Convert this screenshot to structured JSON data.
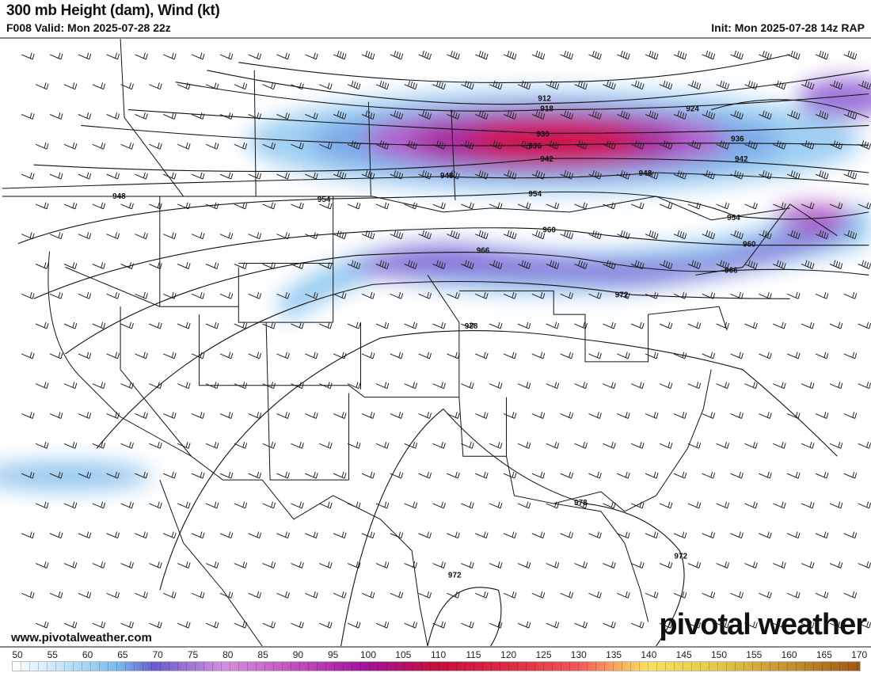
{
  "header": {
    "title": "300 mb Height (dam), Wind (kt)",
    "valid": "F008 Valid: Mon 2025-07-28 22z",
    "init": "Init: Mon 2025-07-28 14z RAP"
  },
  "map": {
    "contour_labels": [
      "912",
      "918",
      "924",
      "930",
      "936",
      "942",
      "948",
      "954",
      "960",
      "966",
      "972",
      "978"
    ],
    "fill_variable": "wind speed (kt)",
    "overlay": "wind barbs"
  },
  "footer": {
    "website": "www.pivotalweather.com",
    "logo": "pivotal weather"
  },
  "colorbar": {
    "ticks": [
      "50",
      "55",
      "60",
      "65",
      "70",
      "75",
      "80",
      "85",
      "90",
      "95",
      "100",
      "105",
      "110",
      "115",
      "120",
      "125",
      "130",
      "135",
      "140",
      "145",
      "150",
      "155",
      "160",
      "165",
      "170"
    ],
    "stops": [
      {
        "v": 50,
        "c": "#ffffff"
      },
      {
        "v": 60,
        "c": "#a9d8f5"
      },
      {
        "v": 65,
        "c": "#7bb8ec"
      },
      {
        "v": 70,
        "c": "#6a5ccc"
      },
      {
        "v": 80,
        "c": "#d590dc"
      },
      {
        "v": 90,
        "c": "#c24fbe"
      },
      {
        "v": 100,
        "c": "#a0159a"
      },
      {
        "v": 110,
        "c": "#c4103e"
      },
      {
        "v": 120,
        "c": "#dc2a44"
      },
      {
        "v": 130,
        "c": "#f0585a"
      },
      {
        "v": 135,
        "c": "#f8a060"
      },
      {
        "v": 140,
        "c": "#f8e060"
      },
      {
        "v": 150,
        "c": "#e4c848"
      },
      {
        "v": 160,
        "c": "#c39232"
      },
      {
        "v": 170,
        "c": "#a05812"
      }
    ]
  }
}
